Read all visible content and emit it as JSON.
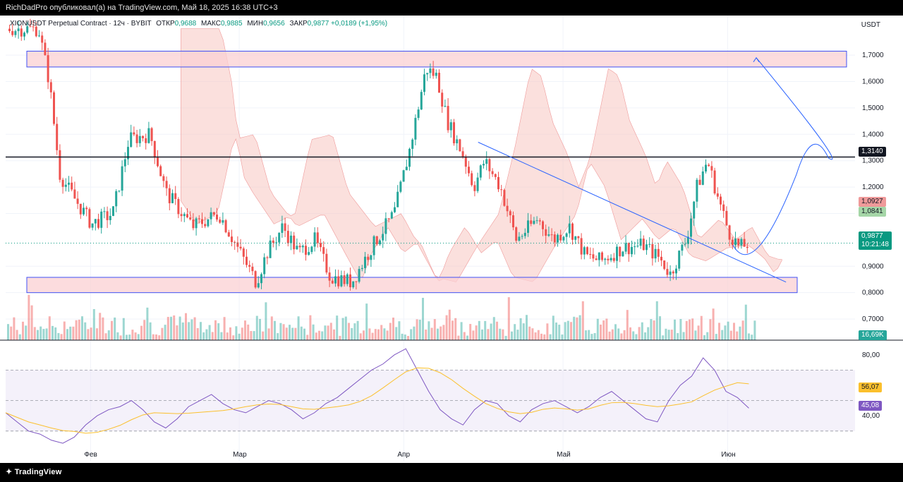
{
  "header": {
    "publisher_line": "RichDadPro опубликовал(а) на TradingView.com, Май 18, 2025 16:38 UTC+3"
  },
  "legend": {
    "symbol": "XIONUSDT Perpetual Contract · 12ч · BYBIT",
    "open_label": "ОТКР",
    "open": "0,9688",
    "high_label": "МАКС",
    "high": "0,9885",
    "low_label": "МИН",
    "low": "0,9656",
    "close_label": "ЗАКР",
    "close": "0,9877",
    "change": "+0,0189 (+1,95%)"
  },
  "axis": {
    "unit": "USDT"
  },
  "tags": {
    "resistance": "1,3140",
    "cloud_a": "1,0927",
    "cloud_b": "1,0841",
    "last_price": "0,9877",
    "countdown": "10:21:48",
    "volume": "16,69K",
    "rsi_ma": "56,07",
    "rsi": "45,08"
  },
  "colors": {
    "up": "#26a69a",
    "down": "#ef5350",
    "cloud_bull": "#a5d6a7",
    "cloud_bear": "#f8c6c1",
    "zone_fill": "#fbd0d3",
    "zone_border": "#3f51f5",
    "forecast": "#2962ff",
    "rsi_line": "#7e57c2",
    "rsi_ma": "#fbc02d",
    "rsi_band": "#ede7f6"
  },
  "footer": {
    "brand": "TradingView"
  },
  "chart_data": {
    "type": "candlestick",
    "title": "XIONUSDT Perpetual Contract · 12ч · BYBIT",
    "interval": "12h",
    "price_axis": {
      "unit": "USDT",
      "ticks": [
        "1,7000",
        "1,6000",
        "1,5000",
        "1,4000",
        "1,3000",
        "1,2000",
        "1,1000",
        "0,9000",
        "0,8000",
        "0,7000"
      ],
      "ylim": [
        0.62,
        1.85
      ]
    },
    "time_axis": {
      "ticks": [
        "Фев",
        "Мар",
        "Апр",
        "Май",
        "Июн"
      ]
    },
    "horizontal_levels": [
      1.314
    ],
    "zones": [
      {
        "label": "resistance zone",
        "from": 1.655,
        "to": 1.715
      },
      {
        "label": "support zone",
        "from": 0.8,
        "to": 0.858
      }
    ],
    "close_path": [
      {
        "t": "2025-01-22",
        "v": 1.8
      },
      {
        "t": "2025-01-24",
        "v": 1.6
      },
      {
        "t": "2025-01-26",
        "v": 1.25
      },
      {
        "t": "2025-01-28",
        "v": 1.18
      },
      {
        "t": "2025-02-01",
        "v": 1.06
      },
      {
        "t": "2025-02-05",
        "v": 1.1
      },
      {
        "t": "2025-02-08",
        "v": 1.38
      },
      {
        "t": "2025-02-12",
        "v": 1.4
      },
      {
        "t": "2025-02-15",
        "v": 1.18
      },
      {
        "t": "2025-02-20",
        "v": 1.05
      },
      {
        "t": "2025-02-25",
        "v": 1.1
      },
      {
        "t": "2025-03-01",
        "v": 0.95
      },
      {
        "t": "2025-03-04",
        "v": 0.84
      },
      {
        "t": "2025-03-06",
        "v": 0.95
      },
      {
        "t": "2025-03-09",
        "v": 1.05
      },
      {
        "t": "2025-03-12",
        "v": 0.95
      },
      {
        "t": "2025-03-15",
        "v": 1.0
      },
      {
        "t": "2025-03-18",
        "v": 0.86
      },
      {
        "t": "2025-03-22",
        "v": 0.84
      },
      {
        "t": "2025-03-26",
        "v": 0.98
      },
      {
        "t": "2025-03-30",
        "v": 1.1
      },
      {
        "t": "2025-04-02",
        "v": 1.35
      },
      {
        "t": "2025-04-05",
        "v": 1.65
      },
      {
        "t": "2025-04-07",
        "v": 1.62
      },
      {
        "t": "2025-04-09",
        "v": 1.45
      },
      {
        "t": "2025-04-12",
        "v": 1.32
      },
      {
        "t": "2025-04-14",
        "v": 1.2
      },
      {
        "t": "2025-04-16",
        "v": 1.3
      },
      {
        "t": "2025-04-19",
        "v": 1.2
      },
      {
        "t": "2025-04-22",
        "v": 1.0
      },
      {
        "t": "2025-04-26",
        "v": 1.08
      },
      {
        "t": "2025-04-29",
        "v": 1.0
      },
      {
        "t": "2025-05-02",
        "v": 1.05
      },
      {
        "t": "2025-05-05",
        "v": 0.94
      },
      {
        "t": "2025-05-08",
        "v": 0.92
      },
      {
        "t": "2025-05-12",
        "v": 0.97
      },
      {
        "t": "2025-05-16",
        "v": 0.98
      },
      {
        "t": "2025-05-19",
        "v": 0.93
      },
      {
        "t": "2025-05-21",
        "v": 0.87
      },
      {
        "t": "2025-05-24",
        "v": 1.0
      },
      {
        "t": "2025-05-26",
        "v": 1.2
      },
      {
        "t": "2025-05-28",
        "v": 1.3
      },
      {
        "t": "2025-05-30",
        "v": 1.16
      },
      {
        "t": "2025-06-01",
        "v": 1.03
      },
      {
        "t": "2025-06-03",
        "v": 0.97
      },
      {
        "t": "2025-06-05",
        "v": 0.9877
      }
    ],
    "forecast_path": [
      0.98,
      0.9,
      1.25,
      1.38,
      1.31,
      1.69
    ],
    "trendline": {
      "from": 1.37,
      "to": 0.84
    },
    "volume": {
      "last": "16,69K"
    },
    "rsi": {
      "ticks": [
        "80,00",
        "60,00",
        "40,00"
      ],
      "band": [
        30,
        70
      ],
      "ylim": [
        10,
        85
      ],
      "last": 45.08,
      "ma_last": 56.07,
      "values": [
        42,
        36,
        30,
        28,
        24,
        22,
        26,
        34,
        40,
        44,
        46,
        50,
        44,
        36,
        32,
        38,
        46,
        50,
        54,
        48,
        44,
        42,
        46,
        50,
        48,
        44,
        38,
        42,
        48,
        52,
        58,
        64,
        70,
        74,
        80,
        84,
        70,
        56,
        44,
        38,
        34,
        44,
        50,
        48,
        40,
        36,
        44,
        48,
        50,
        46,
        42,
        46,
        52,
        56,
        50,
        44,
        38,
        36,
        50,
        60,
        66,
        78,
        70,
        56,
        52,
        45
      ]
    }
  }
}
